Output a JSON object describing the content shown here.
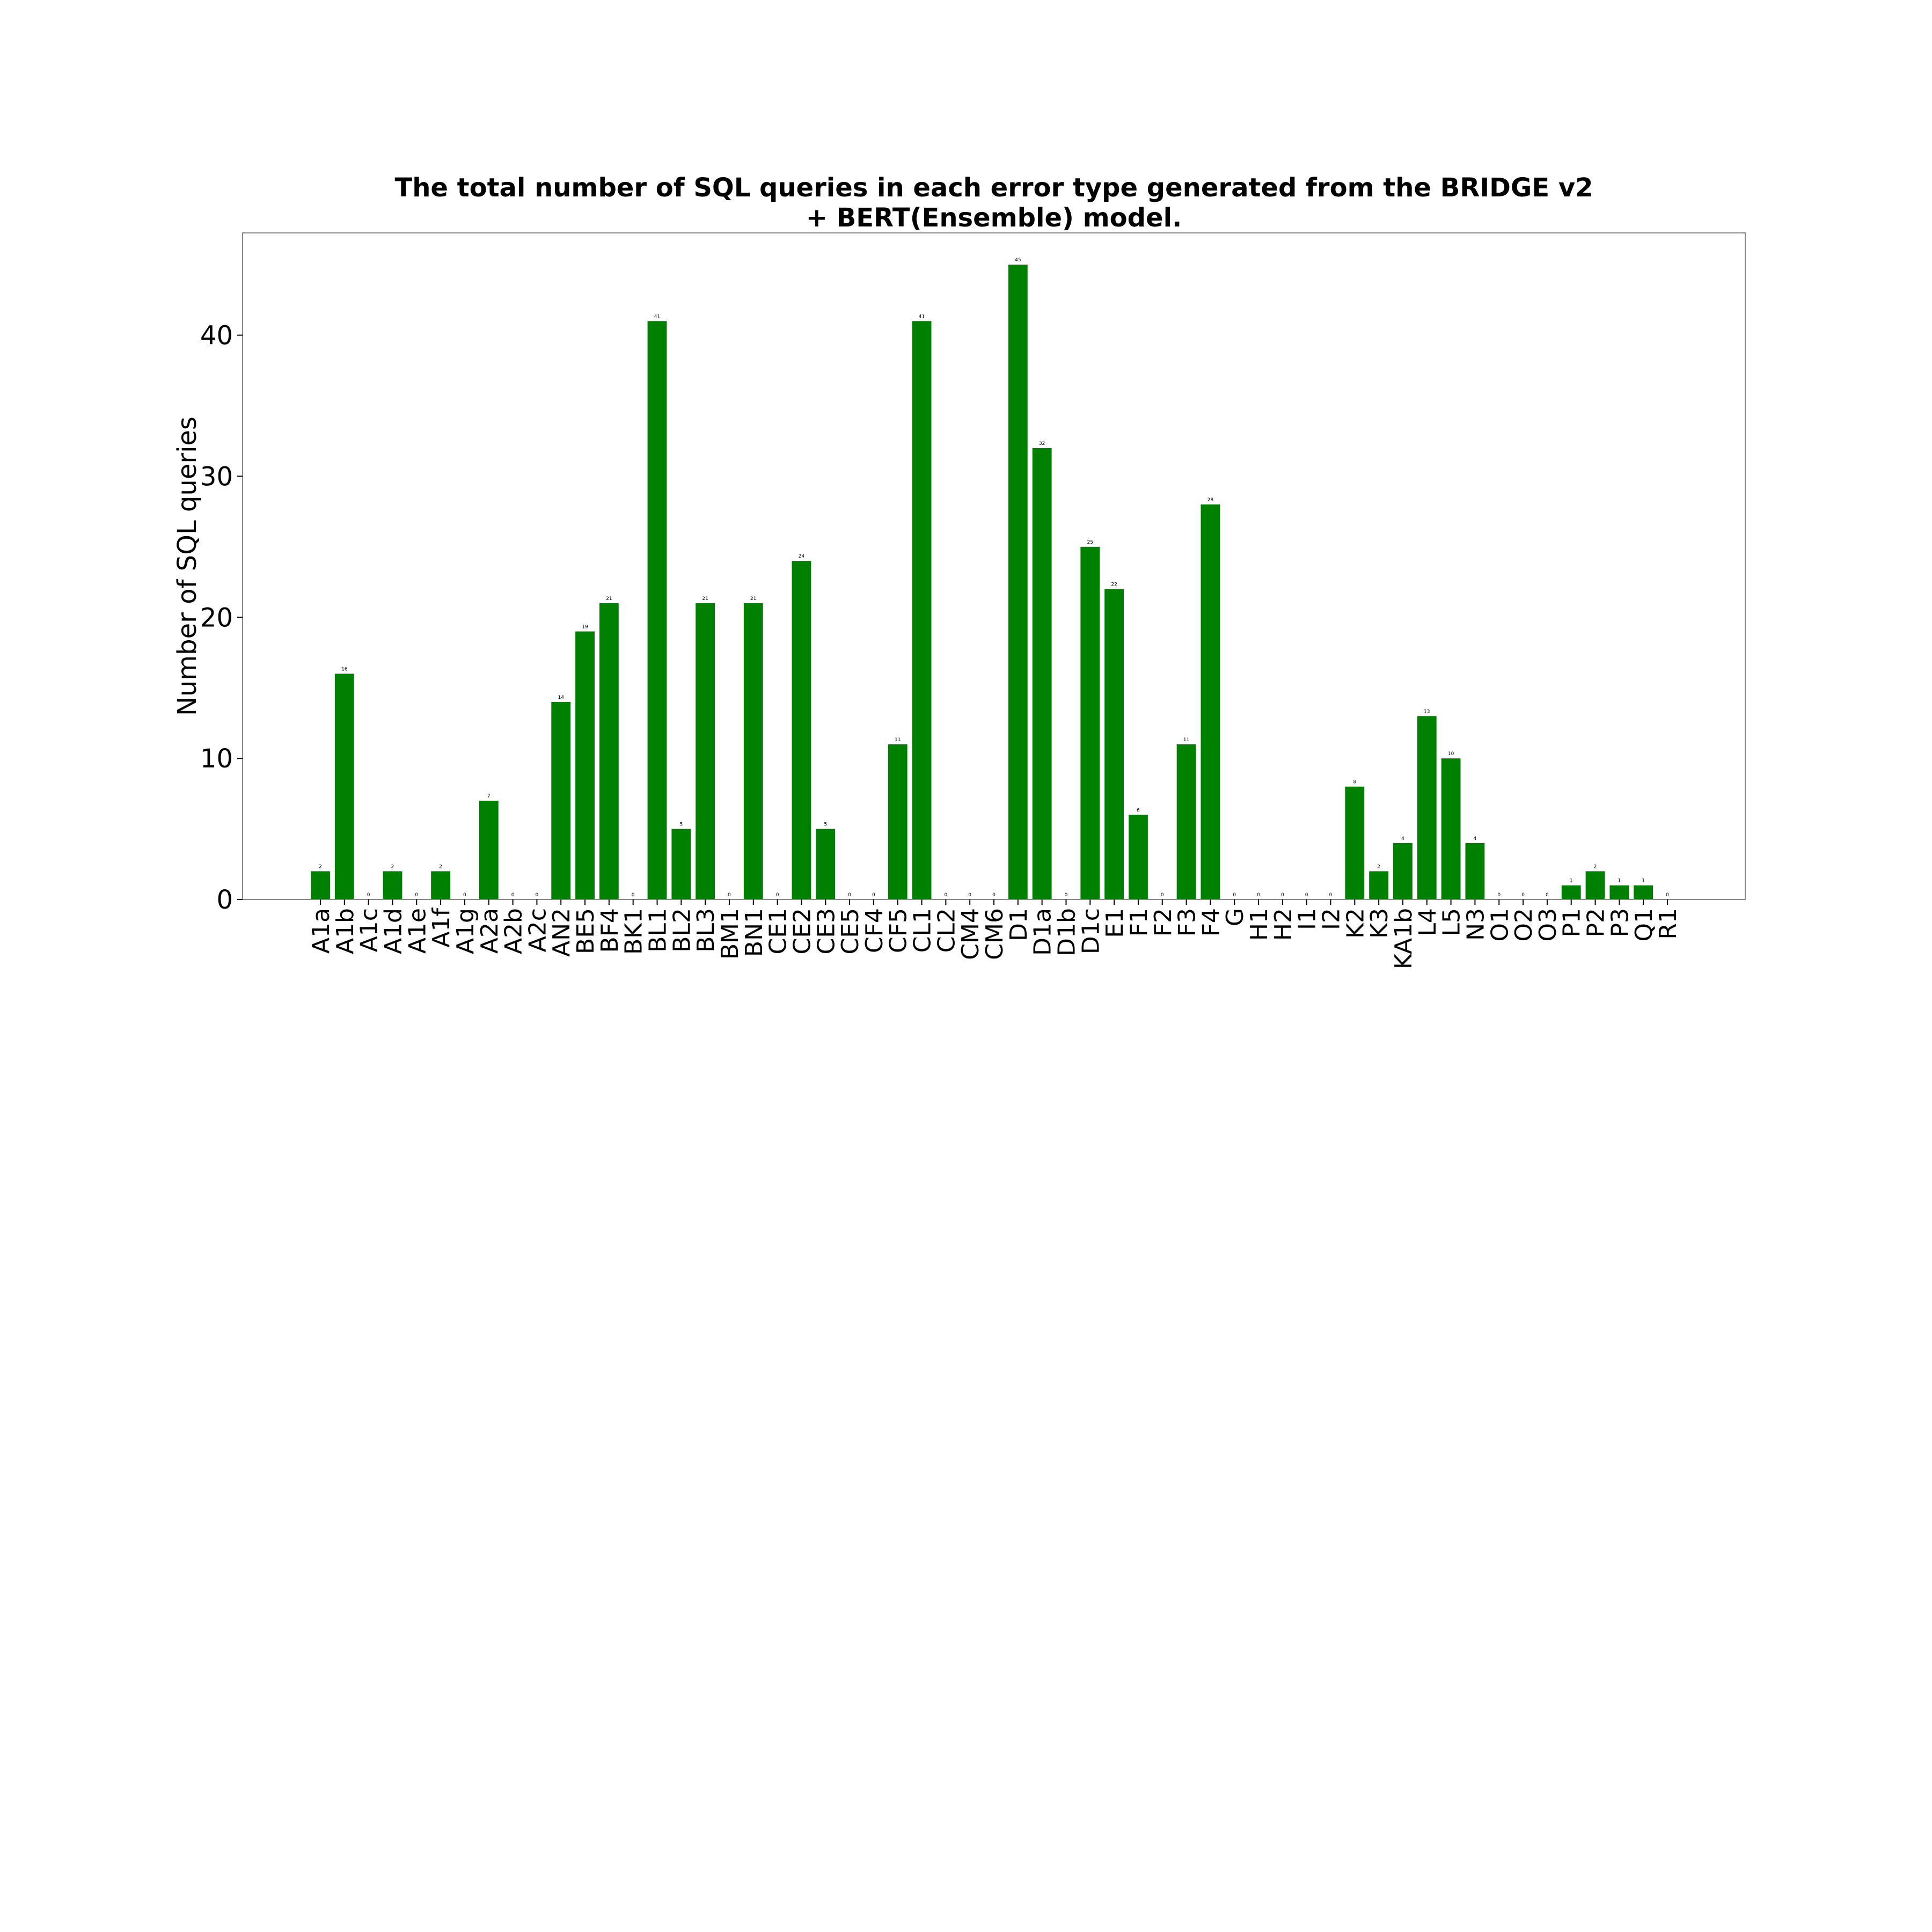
{
  "chart_data": {
    "type": "bar",
    "title_lines": [
      "The total number of SQL queries in each error type generated from the BRIDGE v2",
      "+ BERT(Ensemble) model."
    ],
    "xlabel": "",
    "ylabel": "Number of SQL queries",
    "ylim": [
      0,
      47.25
    ],
    "yticks": [
      0,
      10,
      20,
      30,
      40
    ],
    "grid": false,
    "bar_color": "#008000",
    "categories": [
      "A1a",
      "A1b",
      "A1c",
      "A1d",
      "A1e",
      "A1f",
      "A1g",
      "A2a",
      "A2b",
      "A2c",
      "AN2",
      "BE5",
      "BF4",
      "BK1",
      "BL1",
      "BL2",
      "BL3",
      "BM1",
      "BN1",
      "CE1",
      "CE2",
      "CE3",
      "CE5",
      "CF4",
      "CF5",
      "CL1",
      "CL2",
      "CM4",
      "CM6",
      "D1",
      "D1a",
      "D1b",
      "D1c",
      "E1",
      "F1",
      "F2",
      "F3",
      "F4",
      "G",
      "H1",
      "H2",
      "I1",
      "I2",
      "K2",
      "K3",
      "KA1b",
      "L4",
      "L5",
      "N3",
      "O1",
      "O2",
      "O3",
      "P1",
      "P2",
      "P3",
      "Q1",
      "R1"
    ],
    "values": [
      2,
      16,
      0,
      2,
      0,
      2,
      0,
      7,
      0,
      0,
      14,
      19,
      21,
      0,
      41,
      5,
      21,
      0,
      21,
      0,
      24,
      5,
      0,
      0,
      11,
      41,
      0,
      0,
      0,
      45,
      32,
      0,
      25,
      22,
      6,
      0,
      11,
      28,
      0,
      0,
      0,
      0,
      0,
      8,
      2,
      4,
      13,
      10,
      4,
      0,
      0,
      0,
      1,
      2,
      1,
      1,
      0
    ]
  }
}
